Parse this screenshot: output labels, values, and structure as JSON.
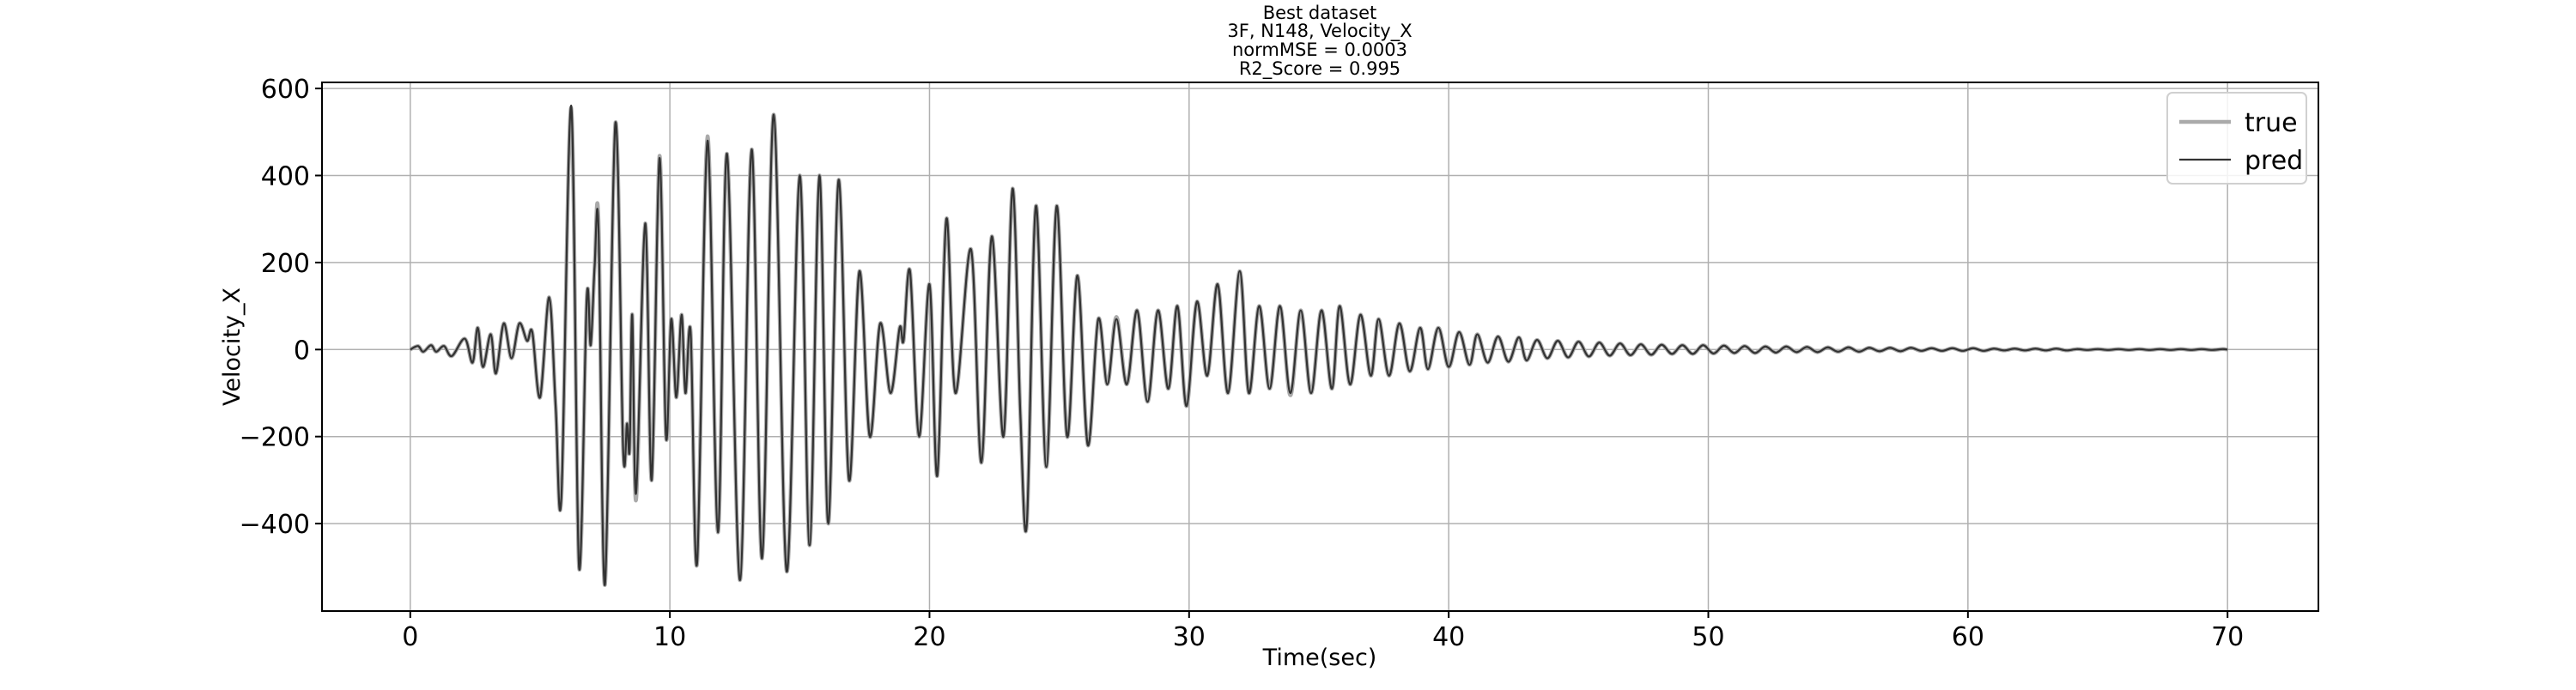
{
  "chart_data": {
    "type": "line",
    "title": "Best dataset",
    "subtitle": [
      "3F, N148, Velocity_X",
      "normMSE = 0.0003",
      "R2_Score = 0.995"
    ],
    "x_label": "Time(sec)",
    "y_label": "Velocity_X",
    "xlim": [
      -3.4,
      73.5
    ],
    "ylim": [
      -601,
      614
    ],
    "xticks": [
      0,
      10,
      20,
      30,
      40,
      50,
      60,
      70
    ],
    "yticks": [
      {
        "value": -400,
        "label": "−400"
      },
      {
        "value": -200,
        "label": "−200"
      },
      0,
      200,
      400,
      600
    ],
    "grid": true,
    "legend": "upper right",
    "x": [
      0,
      0.3,
      0.5,
      0.8,
      1.0,
      1.3,
      1.6,
      2.1,
      2.4,
      2.6,
      2.8,
      3.1,
      3.3,
      3.6,
      3.9,
      4.2,
      4.5,
      4.7,
      5.0,
      5.35,
      5.6,
      5.82,
      6.2,
      6.5,
      6.8,
      6.95,
      7.1,
      7.25,
      7.5,
      7.9,
      8.2,
      8.35,
      8.45,
      8.55,
      8.7,
      9.05,
      9.3,
      9.6,
      9.85,
      10.05,
      10.25,
      10.45,
      10.6,
      10.8,
      11.05,
      11.45,
      11.85,
      12.2,
      12.7,
      13.15,
      13.55,
      14.0,
      14.5,
      15.0,
      15.38,
      15.76,
      16.1,
      16.5,
      16.9,
      17.3,
      17.7,
      18.1,
      18.5,
      18.85,
      19.0,
      19.25,
      19.6,
      20.0,
      20.3,
      20.65,
      21.0,
      21.6,
      22.0,
      22.4,
      22.85,
      23.2,
      23.5,
      23.75,
      24.1,
      24.5,
      24.9,
      25.3,
      25.7,
      26.1,
      26.5,
      26.85,
      27.2,
      27.6,
      28.0,
      28.4,
      28.8,
      29.2,
      29.55,
      29.9,
      30.3,
      30.7,
      31.1,
      31.5,
      31.95,
      32.3,
      32.7,
      33.1,
      33.5,
      33.9,
      34.3,
      34.7,
      35.1,
      35.5,
      35.8,
      36.2,
      36.6,
      37.0,
      37.3,
      37.7,
      38.1,
      38.5,
      38.9,
      39.2,
      39.6,
      40.0,
      40.4,
      40.8,
      41.1,
      41.5,
      41.9,
      42.3,
      42.7,
      43.0,
      43.4,
      43.8,
      44.2,
      44.6,
      45.0,
      45.4,
      45.8,
      46.2,
      46.6,
      47.0,
      47.4,
      47.8,
      48.2,
      48.6,
      49.0,
      49.4,
      49.8,
      50.2,
      50.6,
      51.0,
      51.4,
      51.8,
      52.2,
      52.6,
      53.0,
      53.4,
      53.8,
      54.2,
      54.6,
      55.0,
      55.4,
      55.8,
      56.2,
      56.6,
      57.0,
      57.4,
      57.8,
      58.2,
      58.6,
      59.0,
      59.4,
      59.8,
      60.2,
      60.6,
      61.0,
      61.4,
      61.8,
      62.2,
      62.6,
      63.0,
      63.4,
      63.8,
      64.2,
      64.6,
      65.0,
      65.4,
      65.8,
      66.2,
      66.6,
      67.0,
      67.4,
      67.8,
      68.2,
      68.6,
      69.0,
      69.4,
      69.8,
      70.0
    ],
    "series": [
      {
        "name": "true",
        "color": "#aaaaaa",
        "values": [
          0,
          8,
          -5,
          10,
          -5,
          8,
          -15,
          25,
          -30,
          50,
          -40,
          35,
          -55,
          60,
          -20,
          60,
          20,
          40,
          -110,
          120,
          -130,
          -340,
          555,
          -500,
          120,
          10,
          190,
          295,
          -540,
          520,
          -230,
          -170,
          -230,
          80,
          -345,
          290,
          -300,
          445,
          -200,
          70,
          -110,
          80,
          -100,
          40,
          -490,
          490,
          -420,
          450,
          -530,
          460,
          -480,
          540,
          -510,
          400,
          -450,
          400,
          -400,
          390,
          -300,
          180,
          -200,
          60,
          -100,
          50,
          20,
          180,
          -200,
          150,
          -290,
          300,
          -100,
          230,
          -260,
          260,
          -200,
          370,
          -150,
          -400,
          330,
          -270,
          330,
          -200,
          170,
          -220,
          70,
          -80,
          75,
          -80,
          90,
          -120,
          90,
          -90,
          100,
          -130,
          110,
          -60,
          150,
          -100,
          180,
          -100,
          100,
          -90,
          100,
          -105,
          90,
          -100,
          90,
          -90,
          100,
          -80,
          80,
          -60,
          70,
          -60,
          60,
          -50,
          50,
          -45,
          50,
          -40,
          40,
          -35,
          35,
          -30,
          30,
          -28,
          28,
          -25,
          22,
          -20,
          20,
          -18,
          18,
          -16,
          16,
          -14,
          14,
          -13,
          12,
          -12,
          11,
          -10,
          10,
          -10,
          10,
          -9,
          9,
          -8,
          8,
          -8,
          7,
          -7,
          7,
          -6,
          6,
          -6,
          5,
          -5,
          5,
          -5,
          4,
          -4,
          4,
          -4,
          4,
          -3,
          3,
          -3,
          3,
          -3,
          3,
          -3,
          2,
          -2,
          2,
          -2,
          2,
          -2,
          2,
          -2,
          1,
          -1,
          1,
          -1,
          1,
          -1,
          1,
          -1,
          1,
          -1,
          1,
          -1,
          1,
          -1,
          1,
          0
        ]
      },
      {
        "name": "pred",
        "color": "#333333",
        "values": [
          0,
          8,
          -5,
          10,
          -5,
          8,
          -15,
          25,
          -30,
          50,
          -40,
          35,
          -55,
          60,
          -20,
          60,
          20,
          40,
          -110,
          120,
          -130,
          -340,
          560,
          -500,
          120,
          10,
          190,
          280,
          -540,
          520,
          -230,
          -170,
          -230,
          80,
          -330,
          290,
          -300,
          440,
          -200,
          70,
          -110,
          80,
          -100,
          40,
          -490,
          480,
          -420,
          450,
          -530,
          460,
          -480,
          540,
          -510,
          400,
          -450,
          400,
          -400,
          390,
          -300,
          180,
          -200,
          60,
          -100,
          50,
          20,
          180,
          -200,
          150,
          -290,
          300,
          -100,
          230,
          -260,
          260,
          -200,
          370,
          -150,
          -400,
          330,
          -270,
          330,
          -200,
          170,
          -220,
          70,
          -80,
          70,
          -80,
          90,
          -120,
          90,
          -90,
          100,
          -130,
          110,
          -60,
          150,
          -100,
          180,
          -100,
          100,
          -90,
          100,
          -100,
          90,
          -100,
          90,
          -90,
          100,
          -80,
          80,
          -60,
          70,
          -60,
          60,
          -50,
          50,
          -45,
          50,
          -40,
          40,
          -35,
          35,
          -30,
          30,
          -28,
          28,
          -25,
          22,
          -20,
          20,
          -18,
          18,
          -16,
          16,
          -14,
          14,
          -13,
          12,
          -12,
          11,
          -10,
          10,
          -10,
          10,
          -9,
          9,
          -8,
          8,
          -8,
          7,
          -7,
          7,
          -6,
          6,
          -6,
          5,
          -5,
          5,
          -5,
          4,
          -4,
          4,
          -4,
          4,
          -3,
          3,
          -3,
          3,
          -3,
          3,
          -3,
          2,
          -2,
          2,
          -2,
          2,
          -2,
          2,
          -2,
          1,
          -1,
          1,
          -1,
          1,
          -1,
          1,
          -1,
          1,
          -1,
          1,
          -1,
          1,
          -1,
          1,
          0
        ]
      }
    ]
  }
}
